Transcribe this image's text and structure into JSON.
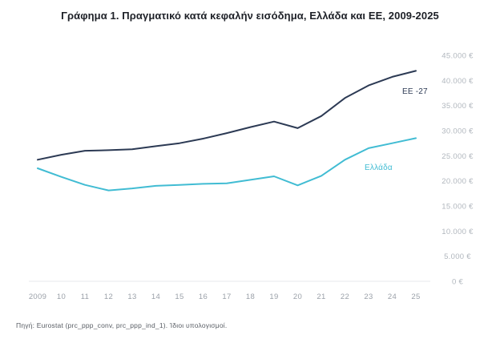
{
  "page": {
    "title": "Γράφημα 1. Πραγματικό κατά κεφαλήν εισόδημα, Ελλάδα και ΕΕ, 2009-2025",
    "source_note": "Πηγή: Eurostat (prc_ppp_conv, prc_ppp_ind_1). Ίδιοι υπολογισμοί."
  },
  "chart_data": {
    "type": "line",
    "title": "Γράφημα 1. Πραγματικό κατά κεφαλήν εισόδημα, Ελλάδα και ΕΕ, 2009-2025",
    "xlabel": "",
    "ylabel": "",
    "x": [
      2009,
      2010,
      2011,
      2012,
      2013,
      2014,
      2015,
      2016,
      2017,
      2018,
      2019,
      2020,
      2021,
      2022,
      2023,
      2024,
      2025
    ],
    "x_tick_labels": [
      "2009",
      "10",
      "11",
      "12",
      "13",
      "14",
      "15",
      "16",
      "17",
      "18",
      "19",
      "20",
      "21",
      "22",
      "23",
      "24",
      "25"
    ],
    "series": [
      {
        "name": "EE -27",
        "color": "#2c3a54",
        "values": [
          24200,
          25200,
          26000,
          26100,
          26300,
          26900,
          27500,
          28400,
          29500,
          30700,
          31800,
          30500,
          32900,
          36500,
          39000,
          40700,
          41900
        ]
      },
      {
        "name": "Ελλάδα",
        "color": "#41bcd3",
        "values": [
          22500,
          20800,
          19200,
          18100,
          18500,
          19000,
          19200,
          19400,
          19500,
          20200,
          20900,
          19100,
          21000,
          24200,
          26500,
          27500,
          28500
        ]
      }
    ],
    "ylim": [
      0,
      45000
    ],
    "y_tick_step": 5000,
    "y_tick_labels": [
      "0 €",
      "5.000 €",
      "10.000 €",
      "15.000 €",
      "20.000 €",
      "25.000 €",
      "30.000 €",
      "35.000 €",
      "40.000 €",
      "45.000 €"
    ],
    "grid": false,
    "legend_position": "inline-end-labels",
    "currency_unit": "€",
    "tick_color_x": "#9ba1a9",
    "tick_color_y": "#b0b6bd",
    "axis_line_color": "#e7e9ec"
  }
}
